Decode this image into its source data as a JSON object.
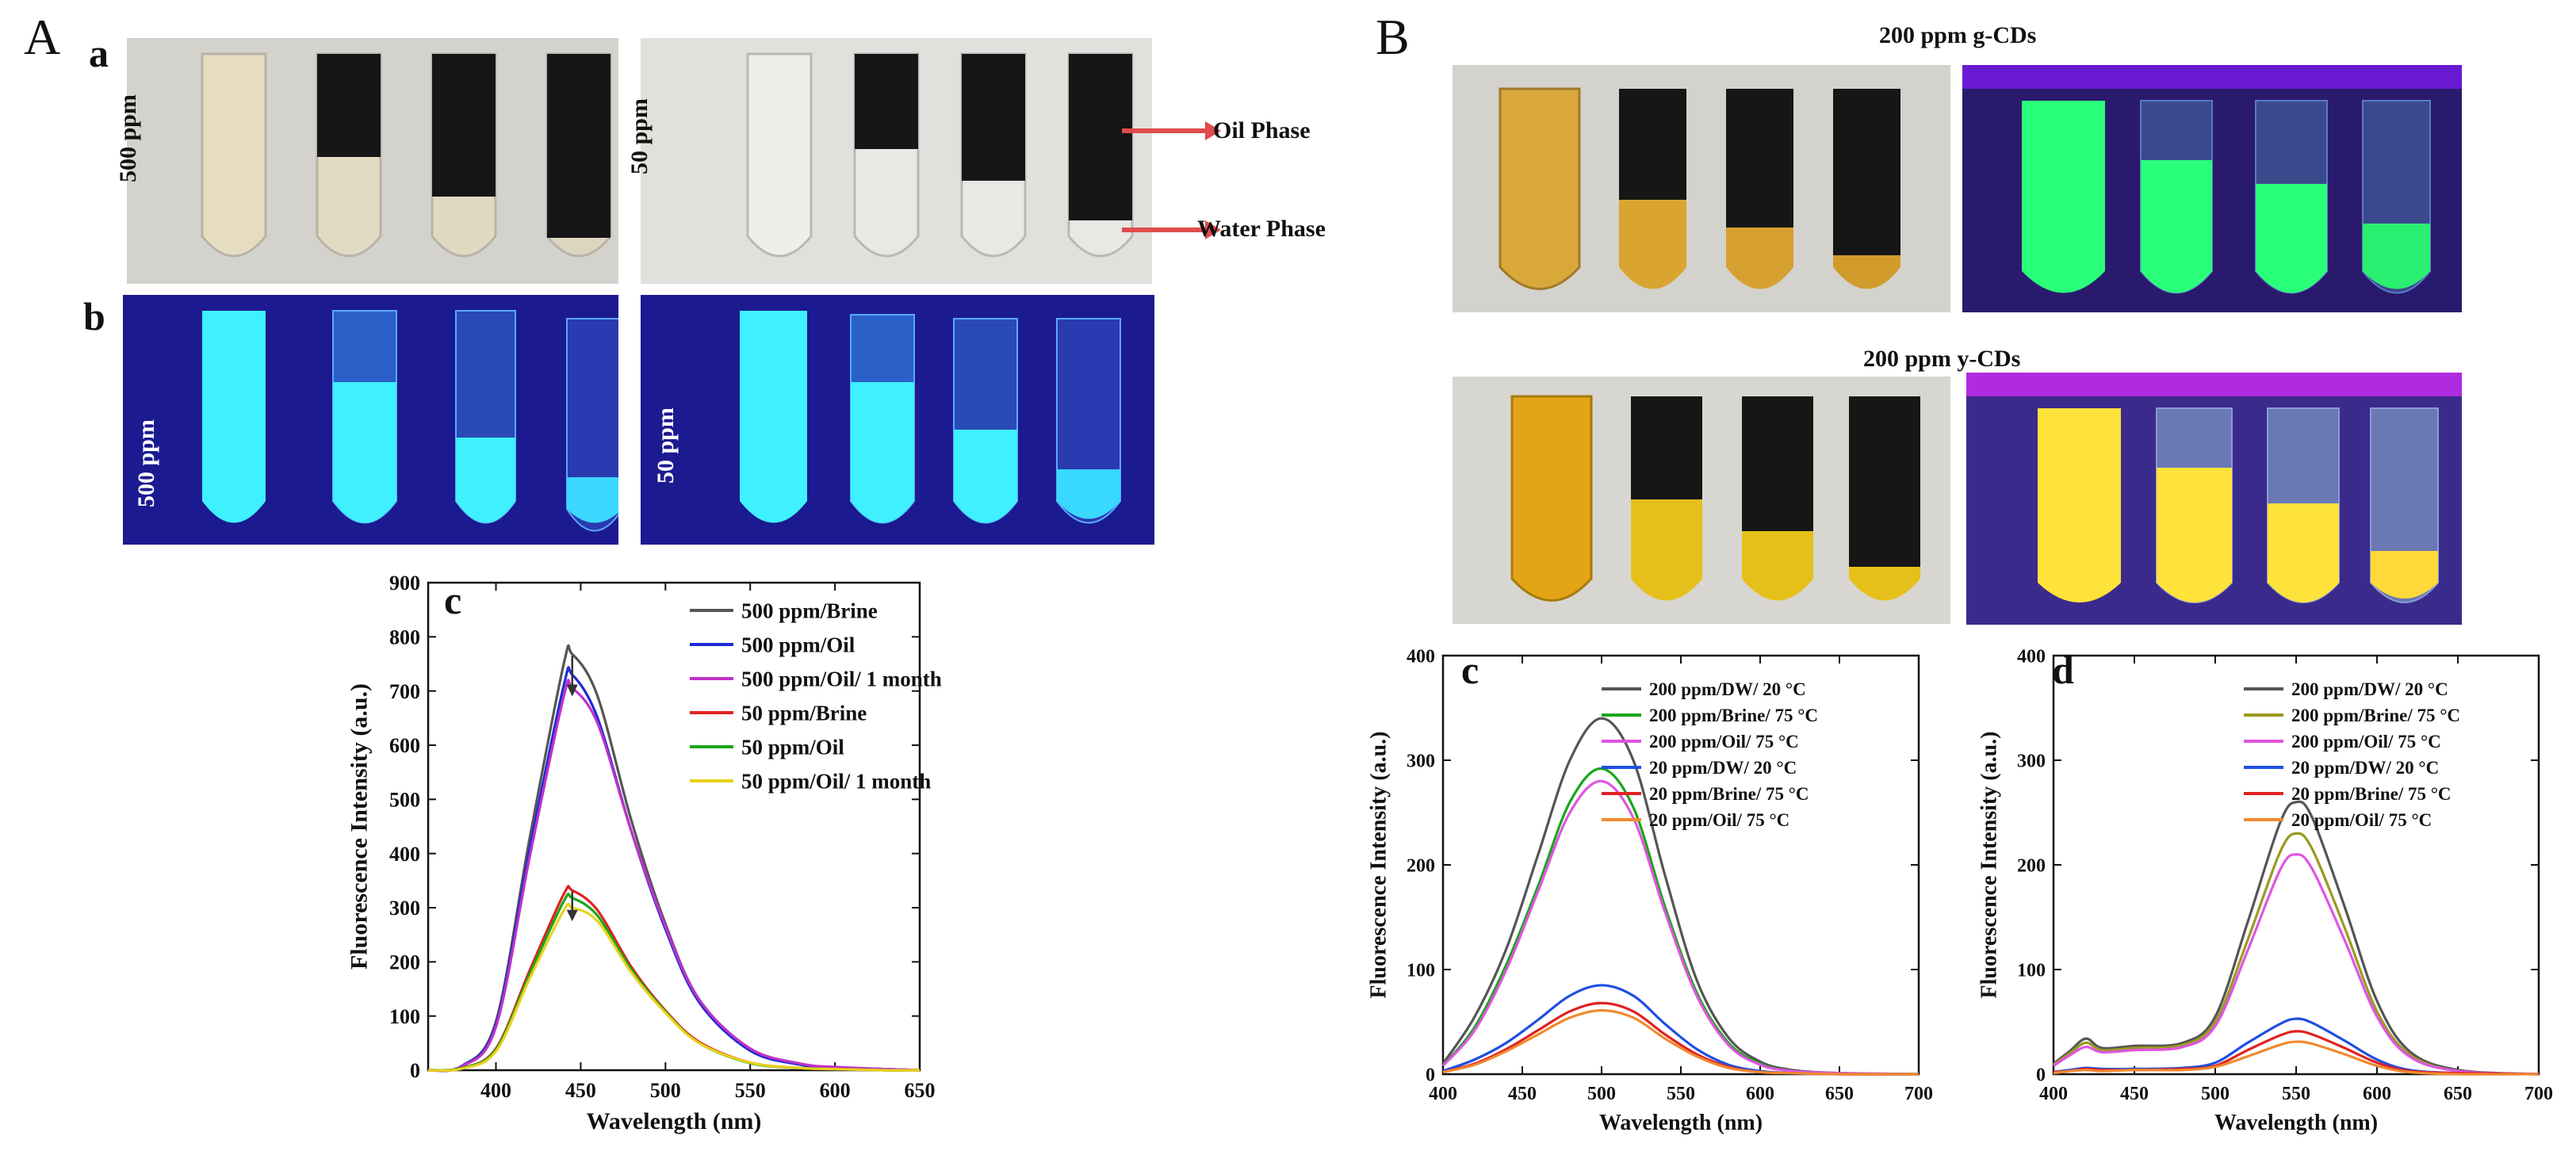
{
  "panels": {
    "A": "A",
    "B": "B",
    "a": "a",
    "b": "b",
    "c": "c",
    "d": "d"
  },
  "photos_A": {
    "conc_500": "500 ppm",
    "conc_50": "50 ppm",
    "oil_phase": "Oil Phase",
    "water_phase": "Water Phase"
  },
  "photos_B": {
    "title_g": "200 ppm g-CDs",
    "title_y": "200 ppm y-CDs"
  },
  "colors": {
    "daylight_bg": "#cfccc6",
    "uv_blue": "#1a1a8c",
    "cyan_glow": "#3ff0ff",
    "green_glow": "#2aff7a",
    "yellow_glow": "#ffe23a",
    "uv_purple": "#4a12a8"
  },
  "chart_data": [
    {
      "id": "chartAc",
      "panel": "c",
      "type": "line",
      "xlabel": "Wavelength (nm)",
      "ylabel": "Fluorescence Intensity (a.u.)",
      "xlim": [
        360,
        650
      ],
      "ylim": [
        0,
        900
      ],
      "xticks": [
        400,
        450,
        500,
        550,
        600,
        650
      ],
      "yticks": [
        0,
        100,
        200,
        300,
        400,
        500,
        600,
        700,
        800,
        900
      ],
      "legend_position": "top-right",
      "x": [
        360,
        380,
        400,
        420,
        440,
        445,
        460,
        480,
        500,
        520,
        550,
        580,
        600,
        630,
        650
      ],
      "series": [
        {
          "name": "500 ppm/Brine",
          "color": "#555555",
          "values": [
            0,
            8,
            90,
            430,
            750,
            768,
            690,
            460,
            270,
            130,
            38,
            10,
            5,
            2,
            0
          ]
        },
        {
          "name": "500 ppm/Oil",
          "color": "#1f2bd6",
          "values": [
            0,
            8,
            85,
            410,
            710,
            730,
            650,
            440,
            260,
            125,
            36,
            10,
            5,
            2,
            0
          ]
        },
        {
          "name": "500 ppm/Oil/ 1 month",
          "color": "#c032c8",
          "values": [
            0,
            7,
            80,
            395,
            690,
            705,
            640,
            440,
            265,
            130,
            40,
            12,
            6,
            2,
            0
          ]
        },
        {
          "name": "50 ppm/Brine",
          "color": "#e02222",
          "values": [
            0,
            4,
            40,
            185,
            325,
            332,
            295,
            190,
            110,
            52,
            14,
            4,
            2,
            0,
            0
          ]
        },
        {
          "name": "50 ppm/Oil",
          "color": "#1aa51a",
          "values": [
            0,
            4,
            38,
            178,
            312,
            318,
            285,
            185,
            108,
            50,
            13,
            4,
            2,
            0,
            0
          ]
        },
        {
          "name": "50 ppm/Oil/ 1 month",
          "color": "#e8d21a",
          "values": [
            0,
            3,
            35,
            170,
            295,
            300,
            275,
            180,
            106,
            50,
            14,
            4,
            2,
            0,
            0
          ]
        }
      ]
    },
    {
      "id": "chartBc",
      "panel": "c",
      "type": "line",
      "xlabel": "Wavelength (nm)",
      "ylabel": "Fluorescence Intensity (a.u.)",
      "xlim": [
        400,
        700
      ],
      "ylim": [
        0,
        400
      ],
      "xticks": [
        400,
        450,
        500,
        550,
        600,
        650,
        700
      ],
      "yticks": [
        0,
        100,
        200,
        300,
        400
      ],
      "legend_position": "top-right",
      "x": [
        400,
        420,
        440,
        460,
        480,
        500,
        520,
        540,
        560,
        580,
        600,
        620,
        650,
        700
      ],
      "series": [
        {
          "name": "200 ppm/DW/ 20 °C",
          "color": "#555555",
          "values": [
            10,
            55,
            120,
            210,
            300,
            340,
            300,
            190,
            90,
            35,
            12,
            4,
            1,
            0
          ]
        },
        {
          "name": "200 ppm/Brine/ 75 °C",
          "color": "#1aa51a",
          "values": [
            8,
            45,
            105,
            180,
            260,
            292,
            255,
            160,
            78,
            30,
            10,
            3,
            1,
            0
          ]
        },
        {
          "name": "200 ppm/Oil/ 75 °C",
          "color": "#e055e0",
          "values": [
            8,
            42,
            100,
            175,
            250,
            280,
            245,
            155,
            75,
            28,
            9,
            3,
            1,
            0
          ]
        },
        {
          "name": "20 ppm/DW/ 20 °C",
          "color": "#1f4fe0",
          "values": [
            3,
            14,
            30,
            52,
            75,
            85,
            75,
            48,
            24,
            9,
            3,
            1,
            0,
            0
          ]
        },
        {
          "name": "20 ppm/Brine/ 75 °C",
          "color": "#e02222",
          "values": [
            2,
            10,
            24,
            42,
            60,
            68,
            60,
            38,
            19,
            7,
            2,
            1,
            0,
            0
          ]
        },
        {
          "name": "20 ppm/Oil/ 75 °C",
          "color": "#f08a30",
          "values": [
            2,
            9,
            22,
            38,
            54,
            61,
            54,
            34,
            17,
            6,
            2,
            1,
            0,
            0
          ]
        }
      ]
    },
    {
      "id": "chartBd",
      "panel": "d",
      "type": "line",
      "xlabel": "Wavelength (nm)",
      "ylabel": "Fluorescence Intensity (a.u.)",
      "xlim": [
        400,
        700
      ],
      "ylim": [
        0,
        400
      ],
      "xticks": [
        400,
        450,
        500,
        550,
        600,
        650,
        700
      ],
      "yticks": [
        0,
        100,
        200,
        300,
        400
      ],
      "legend_position": "top-right",
      "x": [
        400,
        410,
        420,
        430,
        450,
        480,
        500,
        520,
        540,
        550,
        560,
        580,
        600,
        620,
        650,
        700
      ],
      "series": [
        {
          "name": "200 ppm/DW/ 20 °C",
          "color": "#555555",
          "values": [
            10,
            22,
            34,
            25,
            27,
            30,
            55,
            145,
            240,
            260,
            245,
            160,
            70,
            22,
            4,
            0
          ]
        },
        {
          "name": "200 ppm/Brine/ 75 °C",
          "color": "#9a9a20",
          "values": [
            9,
            20,
            30,
            23,
            25,
            28,
            50,
            128,
            212,
            230,
            215,
            140,
            60,
            19,
            3,
            0
          ]
        },
        {
          "name": "200 ppm/Oil/ 75 °C",
          "color": "#e055e0",
          "values": [
            8,
            18,
            26,
            21,
            23,
            26,
            46,
            118,
            195,
            210,
            196,
            128,
            55,
            17,
            3,
            0
          ]
        },
        {
          "name": "20 ppm/DW/ 20 °C",
          "color": "#1f4fe0",
          "values": [
            2,
            4,
            6,
            5,
            5,
            6,
            11,
            30,
            48,
            53,
            49,
            32,
            14,
            4,
            1,
            0
          ]
        },
        {
          "name": "20 ppm/Brine/ 75 °C",
          "color": "#e02222",
          "values": [
            2,
            3,
            5,
            4,
            4,
            5,
            8,
            23,
            37,
            41,
            38,
            25,
            11,
            3,
            1,
            0
          ]
        },
        {
          "name": "20 ppm/Oil/ 75 °C",
          "color": "#f08a30",
          "values": [
            1,
            3,
            4,
            3,
            4,
            4,
            7,
            17,
            28,
            31,
            29,
            19,
            8,
            2,
            0,
            0
          ]
        }
      ]
    }
  ]
}
